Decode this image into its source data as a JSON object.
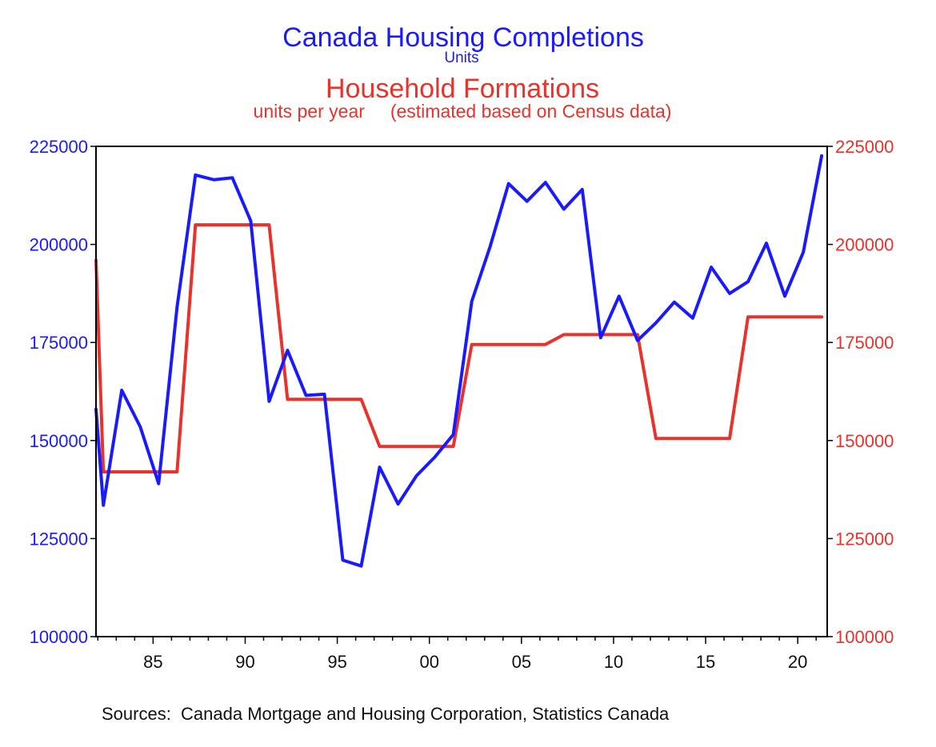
{
  "colors": {
    "blue": "#1a1aff",
    "red": "#e8322b",
    "axis": "#000000",
    "text": "#111111"
  },
  "chart_data": {
    "type": "line",
    "title": "Canada Housing Completions",
    "title_units": "Units",
    "title2": "Household Formations",
    "subtitle2": "units per year     (estimated based on Census data)",
    "source": "Sources:  Canada Mortgage and Housing Corporation, Statistics Canada",
    "xlim": [
      1981.9,
      2021.6
    ],
    "ylim": [
      100000,
      225000
    ],
    "x_ticks": [
      1985,
      1990,
      1995,
      2000,
      2005,
      2010,
      2015,
      2020
    ],
    "x_tick_labels": [
      "85",
      "90",
      "95",
      "00",
      "05",
      "10",
      "15",
      "20"
    ],
    "y_ticks": [
      100000,
      125000,
      150000,
      175000,
      200000,
      225000
    ],
    "y_tick_labels": [
      "100000",
      "125000",
      "150000",
      "175000",
      "200000",
      "225000"
    ],
    "grid": false,
    "series": [
      {
        "name": "Canada Housing Completions",
        "axis": "left",
        "color": "#1a1aff",
        "points": [
          [
            1981.9,
            158000
          ],
          [
            1982.3,
            133500
          ],
          [
            1983.3,
            162800
          ],
          [
            1984.3,
            153500
          ],
          [
            1985.3,
            139000
          ],
          [
            1986.3,
            184000
          ],
          [
            1987.3,
            217700
          ],
          [
            1988.3,
            216500
          ],
          [
            1989.3,
            217000
          ],
          [
            1990.3,
            206000
          ],
          [
            1991.3,
            160000
          ],
          [
            1992.3,
            173000
          ],
          [
            1993.3,
            161500
          ],
          [
            1994.3,
            161800
          ],
          [
            1995.3,
            119500
          ],
          [
            1996.3,
            118000
          ],
          [
            1997.3,
            143200
          ],
          [
            1998.3,
            133800
          ],
          [
            1999.3,
            141000
          ],
          [
            2000.3,
            145800
          ],
          [
            2001.3,
            151500
          ],
          [
            2002.3,
            185500
          ],
          [
            2003.3,
            199500
          ],
          [
            2004.3,
            215500
          ],
          [
            2005.3,
            211000
          ],
          [
            2006.3,
            215800
          ],
          [
            2007.3,
            209000
          ],
          [
            2008.3,
            214000
          ],
          [
            2009.3,
            176200
          ],
          [
            2010.3,
            186800
          ],
          [
            2011.3,
            175500
          ],
          [
            2012.3,
            180000
          ],
          [
            2013.3,
            185300
          ],
          [
            2014.3,
            181200
          ],
          [
            2015.3,
            194200
          ],
          [
            2016.3,
            187500
          ],
          [
            2017.3,
            190500
          ],
          [
            2018.3,
            200300
          ],
          [
            2019.3,
            186800
          ],
          [
            2020.3,
            198000
          ],
          [
            2021.3,
            222600
          ]
        ]
      },
      {
        "name": "Household Formations",
        "axis": "right",
        "color": "#e8322b",
        "points": [
          [
            1981.9,
            196000
          ],
          [
            1982.3,
            142000
          ],
          [
            1986.3,
            142000
          ],
          [
            1987.3,
            205000
          ],
          [
            1991.3,
            205000
          ],
          [
            1992.3,
            160500
          ],
          [
            1996.3,
            160500
          ],
          [
            1997.3,
            148500
          ],
          [
            2001.3,
            148500
          ],
          [
            2002.3,
            174500
          ],
          [
            2006.3,
            174500
          ],
          [
            2007.3,
            177000
          ],
          [
            2011.3,
            177000
          ],
          [
            2012.3,
            150500
          ],
          [
            2016.3,
            150500
          ],
          [
            2017.3,
            181500
          ],
          [
            2021.3,
            181500
          ]
        ]
      }
    ]
  }
}
